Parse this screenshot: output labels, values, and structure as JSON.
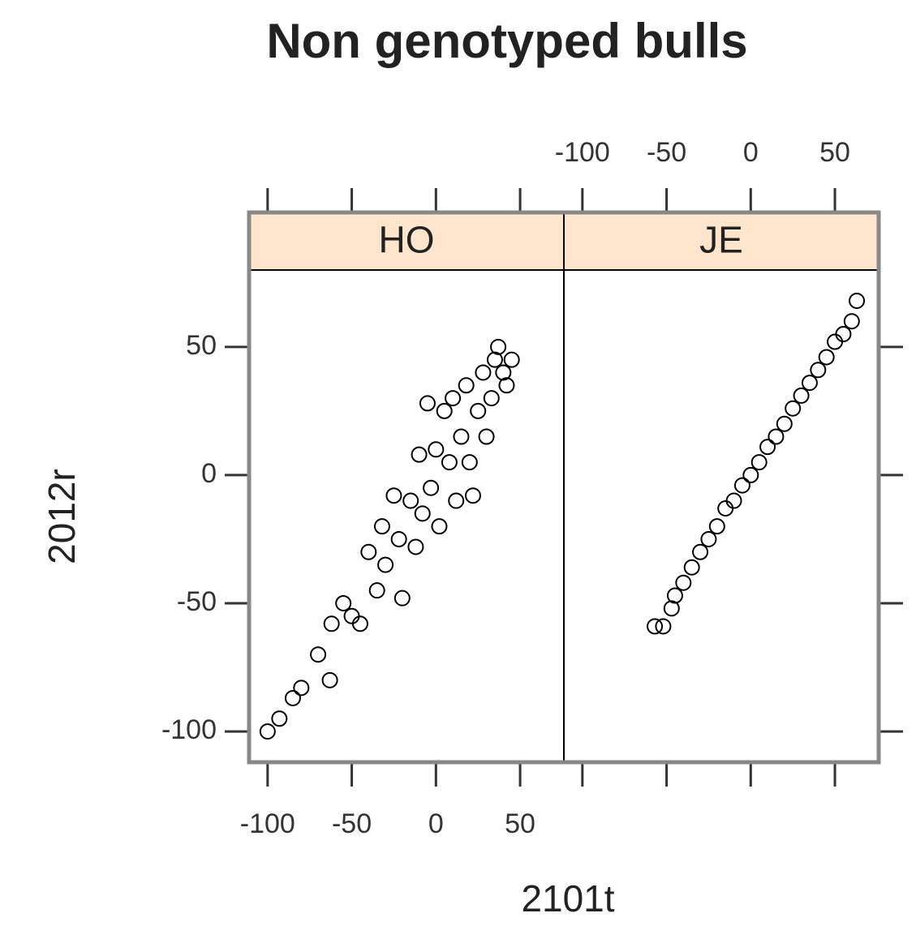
{
  "title": "Non genotyped bulls",
  "x_label": "2101t",
  "y_label": "2012r",
  "chart_data": [
    {
      "type": "scatter",
      "title": "HO",
      "color": "#000000",
      "strip_color": "#ffe5cc",
      "x": [
        -100,
        -93,
        -85,
        -80,
        -63,
        -70,
        -62,
        -55,
        -50,
        -45,
        -40,
        -35,
        -32,
        -30,
        -25,
        -22,
        -20,
        -15,
        -12,
        -10,
        -8,
        -5,
        -3,
        0,
        2,
        5,
        8,
        10,
        12,
        15,
        18,
        20,
        22,
        25,
        28,
        30,
        33,
        35,
        37,
        40,
        42,
        45
      ],
      "values": [
        -100,
        -95,
        -87,
        -83,
        -80,
        -70,
        -58,
        -50,
        -55,
        -58,
        -30,
        -45,
        -20,
        -35,
        -8,
        -25,
        -48,
        -10,
        -28,
        8,
        -15,
        28,
        -5,
        10,
        -20,
        25,
        5,
        30,
        -10,
        15,
        35,
        5,
        -8,
        25,
        40,
        15,
        30,
        45,
        50,
        40,
        35,
        45
      ],
      "xlim": [
        -111,
        76
      ],
      "ylim": [
        -112,
        80
      ],
      "xticks": [
        -100,
        -50,
        0,
        50
      ],
      "yticks": [
        -100,
        -50,
        0,
        50
      ]
    },
    {
      "type": "scatter",
      "title": "JE",
      "color": "#000000",
      "strip_color": "#ffe5cc",
      "x": [
        -57,
        -52,
        -47,
        -45,
        -40,
        -35,
        -30,
        -25,
        -20,
        -15,
        -10,
        -5,
        0,
        5,
        10,
        15,
        20,
        25,
        30,
        35,
        40,
        45,
        50,
        55,
        60,
        63
      ],
      "values": [
        -59,
        -59,
        -52,
        -47,
        -42,
        -36,
        -30,
        -25,
        -20,
        -13,
        -10,
        -4,
        0,
        5,
        11,
        15,
        20,
        26,
        31,
        36,
        41,
        46,
        52,
        55,
        60,
        68
      ],
      "xlim": [
        -111,
        76
      ],
      "ylim": [
        -112,
        80
      ],
      "xticks": [
        -100,
        -50,
        0,
        50
      ],
      "yticks": [
        -100,
        -50,
        0,
        50
      ]
    }
  ]
}
